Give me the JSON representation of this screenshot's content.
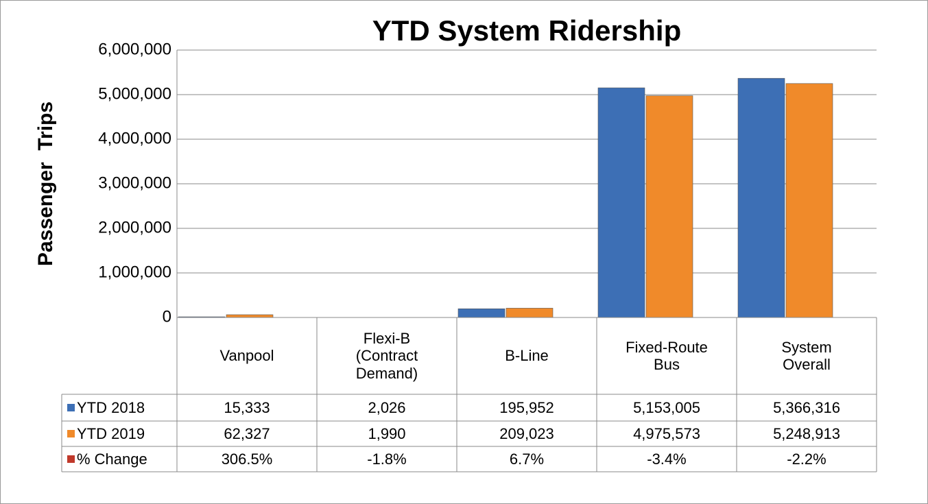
{
  "chart_data": {
    "type": "bar",
    "title": "YTD System Ridership",
    "y_label": "Passenger  Trips",
    "categories": [
      "Vanpool",
      "Flexi-B (Contract Demand)",
      "B-Line",
      "Fixed-Route Bus",
      "System Overall"
    ],
    "series": [
      {
        "name": "YTD 2018",
        "color": "#3d6fb5",
        "values": [
          15333,
          2026,
          195952,
          5153005,
          5366316
        ],
        "value_labels": [
          "15,333",
          "2,026",
          "195,952",
          "5,153,005",
          "5,366,316"
        ]
      },
      {
        "name": "YTD 2019",
        "color": "#f08a2a",
        "values": [
          62327,
          1990,
          209023,
          4975573,
          5248913
        ],
        "value_labels": [
          "62,327",
          "1,990",
          "209,023",
          "4,975,573",
          "5,248,913"
        ]
      }
    ],
    "percent_change": {
      "name": "% Change",
      "color": "#c0392b",
      "values": [
        306.5,
        -1.8,
        6.7,
        -3.4,
        -2.2
      ],
      "value_labels": [
        "306.5%",
        "-1.8%",
        "6.7%",
        "-3.4%",
        "-2.2%"
      ]
    },
    "ylim": [
      0,
      6000000
    ],
    "yticks": [
      {
        "value": 0,
        "label": "0"
      },
      {
        "value": 1000000,
        "label": "1,000,000"
      },
      {
        "value": 2000000,
        "label": "2,000,000"
      },
      {
        "value": 3000000,
        "label": "3,000,000"
      },
      {
        "value": 4000000,
        "label": "4,000,000"
      },
      {
        "value": 5000000,
        "label": "5,000,000"
      },
      {
        "value": 6000000,
        "label": "6,000,000"
      }
    ],
    "grid": true
  }
}
